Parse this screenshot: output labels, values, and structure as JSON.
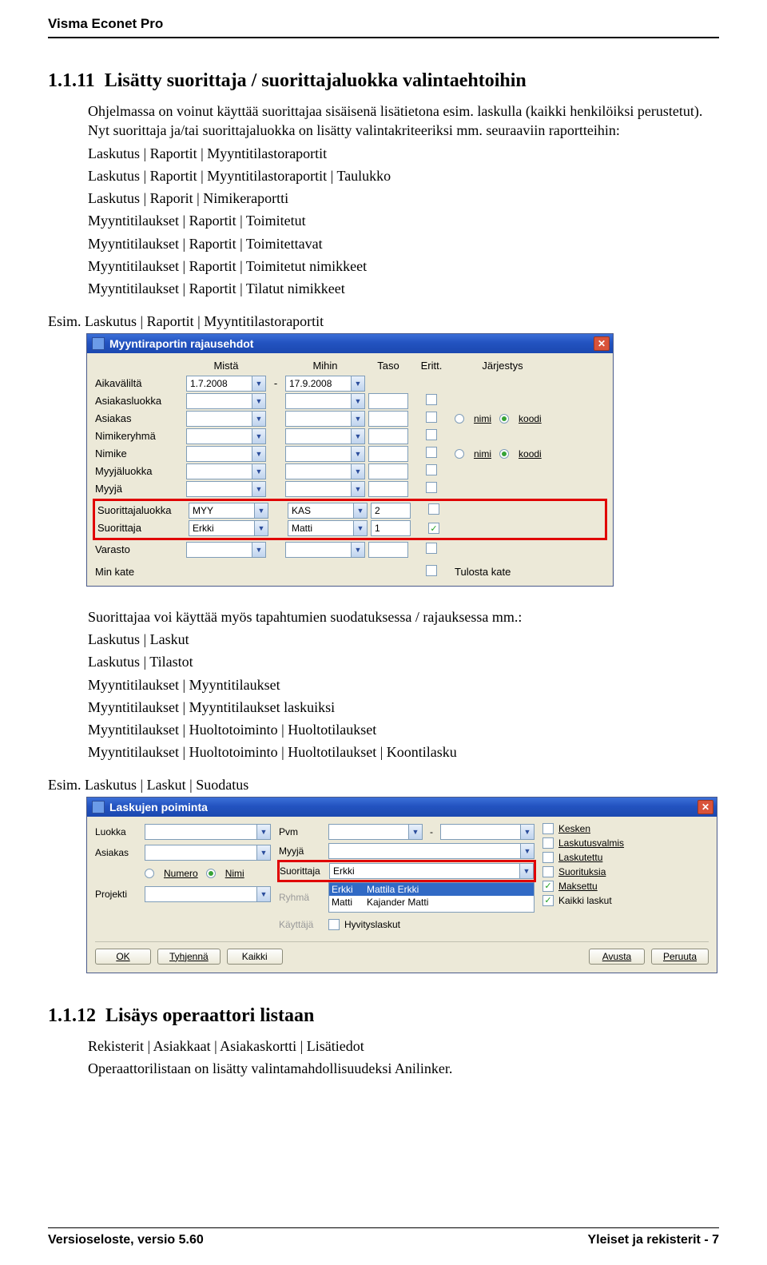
{
  "header": {
    "product": "Visma Econet Pro"
  },
  "section1": {
    "number": "1.1.11",
    "title": "Lisätty suorittaja / suorittajaluokka valintaehtoihin",
    "para1": "Ohjelmassa on voinut käyttää suorittajaa sisäisenä lisätietona esim. laskulla (kaikki henkilöiksi perustetut). Nyt suorittaja ja/tai suorittajaluokka on lisätty valintakriteeriksi mm. seuraaviin raportteihin:",
    "report_lines": [
      "Laskutus | Raportit | Myyntitilastoraportit",
      "Laskutus | Raportit | Myyntitilastoraportit | Taulukko",
      "Laskutus | Raporit | Nimikeraportti",
      "Myyntitilaukset | Raportit | Toimitetut",
      "Myyntitilaukset | Raportit | Toimitettavat",
      "Myyntitilaukset | Raportit | Toimitetut nimikkeet",
      "Myyntitilaukset | Raportit | Tilatut nimikkeet"
    ],
    "example1_label": "Esim. Laskutus | Raportit | Myyntitilastoraportit",
    "para2": "Suorittajaa voi käyttää myös tapahtumien suodatuksessa / rajauksessa mm.:",
    "filter_lines": [
      "Laskutus | Laskut",
      "Laskutus | Tilastot",
      "Myyntitilaukset | Myyntitilaukset",
      "Myyntitilaukset | Myyntitilaukset laskuiksi",
      "Myyntitilaukset | Huoltotoiminto | Huoltotilaukset",
      "Myyntitilaukset | Huoltotoiminto | Huoltotilaukset | Koontilasku"
    ],
    "example2_label": "Esim. Laskutus | Laskut | Suodatus"
  },
  "dialog1": {
    "title": "Myyntiraportin rajausehdot",
    "head": {
      "mista": "Mistä",
      "mihin": "Mihin",
      "taso": "Taso",
      "eritt": "Eritt.",
      "jarj": "Järjestys"
    },
    "row_aika": {
      "label": "Aikaväliltä",
      "from": "1.7.2008",
      "sep": "-",
      "to": "17.9.2008"
    },
    "rows": [
      {
        "label": "Asiakasluokka"
      },
      {
        "label": "Asiakas",
        "radios": true
      },
      {
        "label": "Nimikeryhmä"
      },
      {
        "label": "Nimike",
        "radios": true
      },
      {
        "label": "Myyjäluokka"
      },
      {
        "label": "Myyjä"
      }
    ],
    "hl": [
      {
        "label": "Suorittajaluokka",
        "from": "MYY",
        "to": "KAS",
        "taso": "2"
      },
      {
        "label": "Suorittaja",
        "from": "Erkki",
        "to": "Matti",
        "taso": "1",
        "checked": true
      }
    ],
    "row_varasto": {
      "label": "Varasto"
    },
    "row_minkate": {
      "label": "Min kate",
      "check_label": "Tulosta kate"
    },
    "radio_labels": {
      "nimi": "nimi",
      "koodi": "koodi"
    }
  },
  "dialog2": {
    "title": "Laskujen poiminta",
    "left": {
      "luokka": "Luokka",
      "asiakas": "Asiakas",
      "projekti": "Projekti",
      "numero": "Numero",
      "nimi": "Nimi"
    },
    "mid": {
      "pvm": "Pvm",
      "myyja": "Myyjä",
      "suorittaja": "Suorittaja",
      "suorittaja_val": "Erkki",
      "ryhma": "Ryhmä",
      "kayttaja": "Käyttäjä",
      "hyvitys": "Hyvityslaskut",
      "list_r1a": "Erkki",
      "list_r1b": "Mattila Erkki",
      "list_r2a": "Matti",
      "list_r2b": "Kajander Matti"
    },
    "right": {
      "kesken": "Kesken",
      "laskutusvalmis": "Laskutusvalmis",
      "laskutettu": "Laskutettu",
      "suorituksia": "Suorituksia",
      "maksettu": "Maksettu",
      "kaikki": "Kaikki laskut"
    },
    "buttons": {
      "ok": "OK",
      "tyhjenna": "Tyhjennä",
      "kaikki": "Kaikki",
      "avusta": "Avusta",
      "peruuta": "Peruuta"
    }
  },
  "section2": {
    "number": "1.1.12",
    "title": "Lisäys operaattori listaan",
    "line1": "Rekisterit | Asiakkaat | Asiakaskortti | Lisätiedot",
    "line2": "Operaattorilistaan on lisätty valintamahdollisuudeksi Anilinker."
  },
  "footer": {
    "left": "Versioseloste, versio 5.60",
    "right": "Yleiset ja rekisterit - 7"
  }
}
